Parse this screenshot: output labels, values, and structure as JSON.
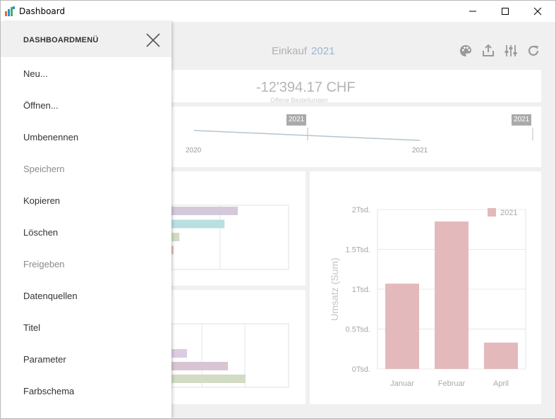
{
  "window": {
    "title": "Dashboard"
  },
  "header": {
    "title": "Einkauf",
    "year": "2021"
  },
  "kpi": {
    "value": "-12'394.17 CHF",
    "sub": "Offene Bestellungen"
  },
  "range": {
    "badge_left": "2021",
    "badge_right": "2021",
    "tick_left": "2020",
    "tick_right": "2021"
  },
  "menu": {
    "title": "DASHBOARDMENÜ",
    "items": [
      {
        "label": "Neu...",
        "enabled": true
      },
      {
        "label": "Öffnen...",
        "enabled": true
      },
      {
        "label": "Umbenennen",
        "enabled": true
      },
      {
        "label": "Speichern",
        "enabled": false
      },
      {
        "label": "Kopieren",
        "enabled": true
      },
      {
        "label": "Löschen",
        "enabled": true
      },
      {
        "label": "Freigeben",
        "enabled": false
      },
      {
        "label": "Datenquellen",
        "enabled": true
      },
      {
        "label": "Titel",
        "enabled": true
      },
      {
        "label": "Parameter",
        "enabled": true
      },
      {
        "label": "Farbschema",
        "enabled": true
      }
    ]
  },
  "icons": {
    "app": "dashboard-app-icon",
    "theme": "palette-icon",
    "export": "export-icon",
    "params": "sliders-icon",
    "refresh": "refresh-icon",
    "close": "close-icon"
  },
  "colors": {
    "bar_purple": "#d4c8db",
    "bar_teal": "#b9dfe0",
    "bar_green": "#d2dcc4",
    "bar_pink": "#e6b9bb",
    "column": "#e4b9bb",
    "accent_year": "#9ab6d3"
  },
  "chart_data": [
    {
      "type": "bar",
      "orientation": "horizontal",
      "values": [
        100,
        80,
        12,
        3
      ],
      "colors": [
        "#d4c8db",
        "#b9dfe0",
        "#d2dcc4",
        "#e6b9bb"
      ]
    },
    {
      "type": "bar",
      "orientation": "horizontal",
      "values": [
        22,
        80,
        105
      ],
      "colors": [
        "#dccbe4",
        "#d9c4d4",
        "#d2dcc4"
      ]
    },
    {
      "type": "bar",
      "categories": [
        "Januar",
        "Februar",
        "April"
      ],
      "series": [
        {
          "name": "2021",
          "values": [
            1070,
            1850,
            330
          ]
        }
      ],
      "ylabel": "Umsatz (Sum)",
      "yticks": [
        "0Tsd.",
        "0.5Tsd.",
        "1Tsd.",
        "1.5Tsd.",
        "2Tsd."
      ],
      "ylim": [
        0,
        2000
      ],
      "legend": "top-right",
      "grid": true
    }
  ]
}
